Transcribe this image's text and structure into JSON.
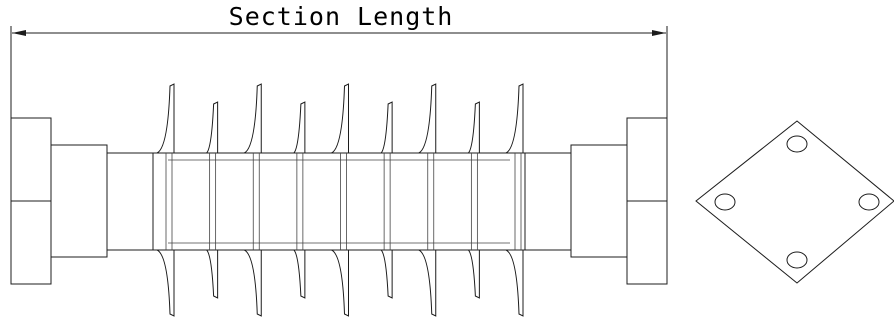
{
  "dimension": {
    "label": "Section Length"
  },
  "colors": {
    "line": "#1c1c1c",
    "background": "#ffffff"
  },
  "insulator": {
    "shed_count": 9,
    "shed_pattern": [
      "large",
      "small",
      "large",
      "small",
      "large",
      "small",
      "large",
      "small",
      "large"
    ]
  },
  "end_view": {
    "shape": "diamond-flange",
    "bolt_holes": 4
  }
}
